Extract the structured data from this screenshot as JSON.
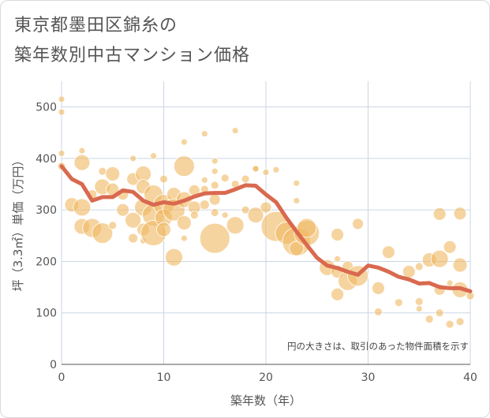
{
  "title_line1": "東京都墨田区錦糸の",
  "title_line2": "築年数別中古マンション価格",
  "chart_data": {
    "type": "scatter",
    "xlabel": "築年数（年）",
    "ylabel": "坪（3.3㎡）単価（万円）",
    "xlim": [
      0,
      40
    ],
    "ylim": [
      0,
      550
    ],
    "xticks": [
      0,
      10,
      20,
      30,
      40
    ],
    "yticks": [
      0,
      100,
      200,
      300,
      400,
      500
    ],
    "grid": true,
    "note": "円の大きさは、取引のあった物件面積を示す",
    "bubble_color": "#f0b860",
    "line_color": "#d9694f",
    "points": [
      {
        "x": 0,
        "y": 515,
        "s": 4
      },
      {
        "x": 0,
        "y": 490,
        "s": 4
      },
      {
        "x": 0,
        "y": 410,
        "s": 4
      },
      {
        "x": 0,
        "y": 385,
        "s": 5
      },
      {
        "x": 1,
        "y": 310,
        "s": 9
      },
      {
        "x": 2,
        "y": 415,
        "s": 4
      },
      {
        "x": 2,
        "y": 392,
        "s": 10
      },
      {
        "x": 2,
        "y": 305,
        "s": 11
      },
      {
        "x": 2,
        "y": 268,
        "s": 10
      },
      {
        "x": 3,
        "y": 265,
        "s": 12
      },
      {
        "x": 3,
        "y": 330,
        "s": 6
      },
      {
        "x": 4,
        "y": 375,
        "s": 5
      },
      {
        "x": 4,
        "y": 345,
        "s": 10
      },
      {
        "x": 4,
        "y": 255,
        "s": 13
      },
      {
        "x": 5,
        "y": 370,
        "s": 9
      },
      {
        "x": 5,
        "y": 340,
        "s": 8
      },
      {
        "x": 5,
        "y": 270,
        "s": 5
      },
      {
        "x": 6,
        "y": 330,
        "s": 7
      },
      {
        "x": 6,
        "y": 300,
        "s": 8
      },
      {
        "x": 7,
        "y": 400,
        "s": 4
      },
      {
        "x": 7,
        "y": 360,
        "s": 8
      },
      {
        "x": 7,
        "y": 280,
        "s": 10
      },
      {
        "x": 7,
        "y": 245,
        "s": 6
      },
      {
        "x": 8,
        "y": 370,
        "s": 10
      },
      {
        "x": 8,
        "y": 345,
        "s": 9
      },
      {
        "x": 8,
        "y": 305,
        "s": 11
      },
      {
        "x": 8,
        "y": 262,
        "s": 8
      },
      {
        "x": 8,
        "y": 240,
        "s": 4
      },
      {
        "x": 9,
        "y": 405,
        "s": 4
      },
      {
        "x": 9,
        "y": 330,
        "s": 12
      },
      {
        "x": 9,
        "y": 290,
        "s": 14
      },
      {
        "x": 9,
        "y": 255,
        "s": 16
      },
      {
        "x": 10,
        "y": 360,
        "s": 5
      },
      {
        "x": 10,
        "y": 310,
        "s": 13
      },
      {
        "x": 10,
        "y": 285,
        "s": 11
      },
      {
        "x": 10,
        "y": 262,
        "s": 9
      },
      {
        "x": 11,
        "y": 330,
        "s": 9
      },
      {
        "x": 11,
        "y": 300,
        "s": 14
      },
      {
        "x": 11,
        "y": 208,
        "s": 11
      },
      {
        "x": 12,
        "y": 432,
        "s": 4
      },
      {
        "x": 12,
        "y": 385,
        "s": 13
      },
      {
        "x": 12,
        "y": 320,
        "s": 10
      },
      {
        "x": 12,
        "y": 275,
        "s": 9
      },
      {
        "x": 12,
        "y": 245,
        "s": 4
      },
      {
        "x": 13,
        "y": 338,
        "s": 7
      },
      {
        "x": 13,
        "y": 305,
        "s": 8
      },
      {
        "x": 13,
        "y": 290,
        "s": 5
      },
      {
        "x": 14,
        "y": 448,
        "s": 4
      },
      {
        "x": 14,
        "y": 358,
        "s": 4
      },
      {
        "x": 14,
        "y": 340,
        "s": 5
      },
      {
        "x": 14,
        "y": 310,
        "s": 6
      },
      {
        "x": 15,
        "y": 395,
        "s": 4
      },
      {
        "x": 15,
        "y": 375,
        "s": 4
      },
      {
        "x": 15,
        "y": 348,
        "s": 5
      },
      {
        "x": 15,
        "y": 320,
        "s": 7
      },
      {
        "x": 15,
        "y": 295,
        "s": 5
      },
      {
        "x": 15,
        "y": 245,
        "s": 19
      },
      {
        "x": 16,
        "y": 362,
        "s": 5
      },
      {
        "x": 16,
        "y": 290,
        "s": 4
      },
      {
        "x": 17,
        "y": 454,
        "s": 4
      },
      {
        "x": 17,
        "y": 350,
        "s": 5
      },
      {
        "x": 17,
        "y": 270,
        "s": 11
      },
      {
        "x": 18,
        "y": 360,
        "s": 5
      },
      {
        "x": 18,
        "y": 300,
        "s": 5
      },
      {
        "x": 19,
        "y": 380,
        "s": 4
      },
      {
        "x": 19,
        "y": 380,
        "s": 4
      },
      {
        "x": 19,
        "y": 290,
        "s": 10
      },
      {
        "x": 20,
        "y": 305,
        "s": 7
      },
      {
        "x": 20,
        "y": 373,
        "s": 4
      },
      {
        "x": 21,
        "y": 378,
        "s": 4
      },
      {
        "x": 21,
        "y": 268,
        "s": 19
      },
      {
        "x": 22,
        "y": 255,
        "s": 14
      },
      {
        "x": 23,
        "y": 352,
        "s": 4
      },
      {
        "x": 23,
        "y": 318,
        "s": 4
      },
      {
        "x": 23,
        "y": 238,
        "s": 18
      },
      {
        "x": 23,
        "y": 225,
        "s": 9
      },
      {
        "x": 24,
        "y": 255,
        "s": 16
      },
      {
        "x": 24,
        "y": 265,
        "s": 12
      },
      {
        "x": 26,
        "y": 188,
        "s": 10
      },
      {
        "x": 27,
        "y": 252,
        "s": 8
      },
      {
        "x": 27,
        "y": 205,
        "s": 4
      },
      {
        "x": 27,
        "y": 180,
        "s": 8
      },
      {
        "x": 27,
        "y": 136,
        "s": 8
      },
      {
        "x": 28,
        "y": 190,
        "s": 7
      },
      {
        "x": 28,
        "y": 162,
        "s": 12
      },
      {
        "x": 29,
        "y": 273,
        "s": 7
      },
      {
        "x": 29,
        "y": 172,
        "s": 13
      },
      {
        "x": 31,
        "y": 148,
        "s": 8
      },
      {
        "x": 31,
        "y": 102,
        "s": 5
      },
      {
        "x": 32,
        "y": 218,
        "s": 8
      },
      {
        "x": 33,
        "y": 120,
        "s": 5
      },
      {
        "x": 34,
        "y": 180,
        "s": 8
      },
      {
        "x": 35,
        "y": 190,
        "s": 5
      },
      {
        "x": 35,
        "y": 122,
        "s": 5
      },
      {
        "x": 35,
        "y": 108,
        "s": 4
      },
      {
        "x": 36,
        "y": 203,
        "s": 9
      },
      {
        "x": 36,
        "y": 88,
        "s": 5
      },
      {
        "x": 37,
        "y": 292,
        "s": 8
      },
      {
        "x": 37,
        "y": 205,
        "s": 11
      },
      {
        "x": 37,
        "y": 145,
        "s": 7
      },
      {
        "x": 37,
        "y": 100,
        "s": 5
      },
      {
        "x": 38,
        "y": 228,
        "s": 8
      },
      {
        "x": 38,
        "y": 78,
        "s": 5
      },
      {
        "x": 38,
        "y": 158,
        "s": 4
      },
      {
        "x": 39,
        "y": 293,
        "s": 8
      },
      {
        "x": 39,
        "y": 193,
        "s": 9
      },
      {
        "x": 39,
        "y": 145,
        "s": 10
      },
      {
        "x": 39,
        "y": 83,
        "s": 5
      },
      {
        "x": 40,
        "y": 133,
        "s": 5
      }
    ],
    "trend": {
      "x": [
        0,
        1,
        2,
        3,
        4,
        5,
        6,
        7,
        8,
        9,
        10,
        11,
        12,
        13,
        14,
        15,
        16,
        17,
        18,
        19,
        20,
        21,
        22,
        23,
        24,
        25,
        26,
        27,
        28,
        29,
        30,
        31,
        32,
        33,
        34,
        35,
        36,
        37,
        38,
        39,
        40
      ],
      "y": [
        385,
        360,
        350,
        318,
        325,
        325,
        338,
        335,
        318,
        310,
        315,
        312,
        318,
        326,
        332,
        333,
        333,
        340,
        348,
        347,
        330,
        315,
        285,
        258,
        232,
        207,
        192,
        187,
        180,
        174,
        192,
        188,
        180,
        170,
        165,
        157,
        158,
        150,
        148,
        148,
        142
      ]
    }
  }
}
